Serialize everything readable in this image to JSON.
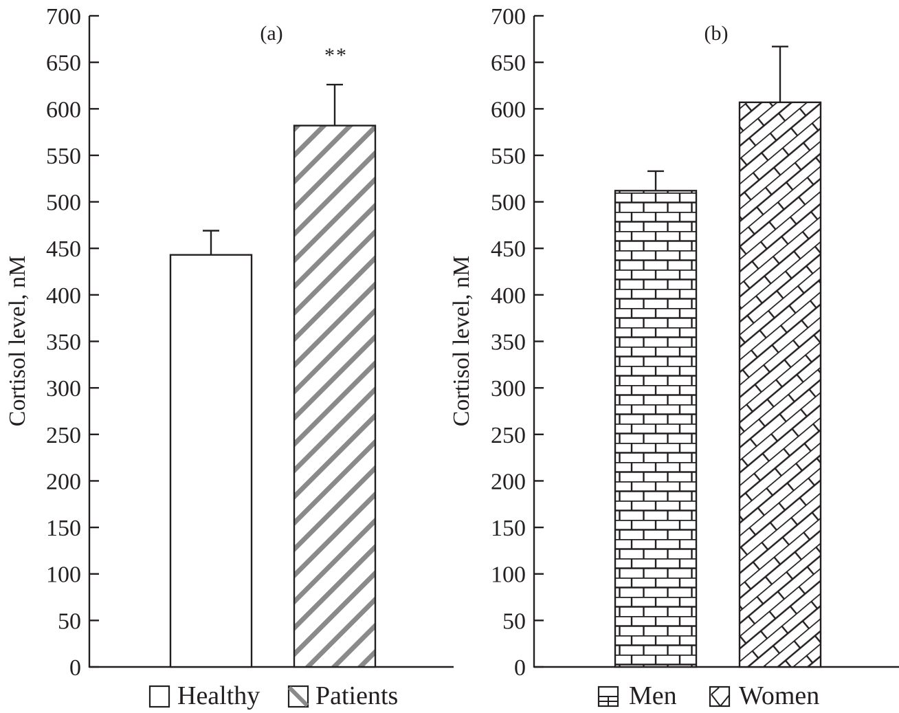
{
  "chart_data": [
    {
      "type": "bar",
      "panel_label": "(a)",
      "title": "",
      "xlabel": "",
      "ylabel": "Cortisol level, nM",
      "ylim": [
        0,
        700
      ],
      "yticks": [
        0,
        50,
        100,
        150,
        200,
        250,
        300,
        350,
        400,
        450,
        500,
        550,
        600,
        650,
        700
      ],
      "grid": false,
      "legend_position": "bottom",
      "categories": [
        "Healthy",
        "Patients"
      ],
      "series": [
        {
          "name": "Healthy",
          "values": [
            443
          ],
          "error_upper": [
            26
          ],
          "pattern": "empty",
          "color": "#ffffff"
        },
        {
          "name": "Patients",
          "values": [
            582
          ],
          "error_upper": [
            44
          ],
          "pattern": "diagonal-stripes",
          "color": "#8a8a8a"
        }
      ],
      "annotations": [
        {
          "text": "**",
          "category": "Patients"
        }
      ]
    },
    {
      "type": "bar",
      "panel_label": "(b)",
      "title": "",
      "xlabel": "",
      "ylabel": "Cortisol level, nM",
      "ylim": [
        0,
        700
      ],
      "yticks": [
        0,
        50,
        100,
        150,
        200,
        250,
        300,
        350,
        400,
        450,
        500,
        550,
        600,
        650,
        700
      ],
      "grid": false,
      "legend_position": "bottom",
      "categories": [
        "Men",
        "Women"
      ],
      "series": [
        {
          "name": "Men",
          "values": [
            512
          ],
          "error_upper": [
            21
          ],
          "pattern": "horizontal-brick",
          "color": "#231f20"
        },
        {
          "name": "Women",
          "values": [
            607
          ],
          "error_upper": [
            60
          ],
          "pattern": "diagonal-brick",
          "color": "#231f20"
        }
      ],
      "annotations": []
    }
  ],
  "colors": {
    "ink": "#231f20",
    "stripe": "#8a8a8a",
    "background": "#ffffff"
  }
}
